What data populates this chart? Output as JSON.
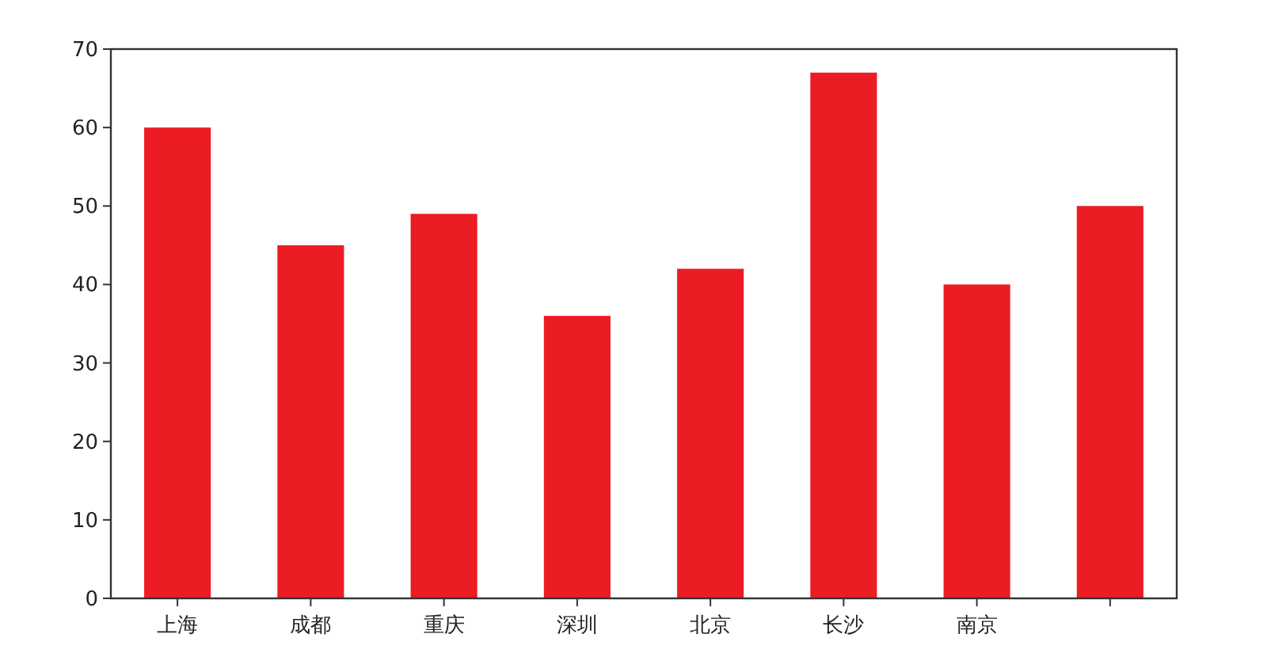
{
  "chart_data": {
    "type": "bar",
    "categories": [
      "上海",
      "成都",
      "重庆",
      "深圳",
      "北京",
      "长沙",
      "南京",
      null
    ],
    "values": [
      60,
      45,
      49,
      36,
      42,
      67,
      40,
      50
    ],
    "color": "#ec1c24",
    "ylim": [
      0,
      70
    ],
    "yticks": [
      0,
      10,
      20,
      30,
      40,
      50,
      60,
      70
    ],
    "grid": false
  }
}
